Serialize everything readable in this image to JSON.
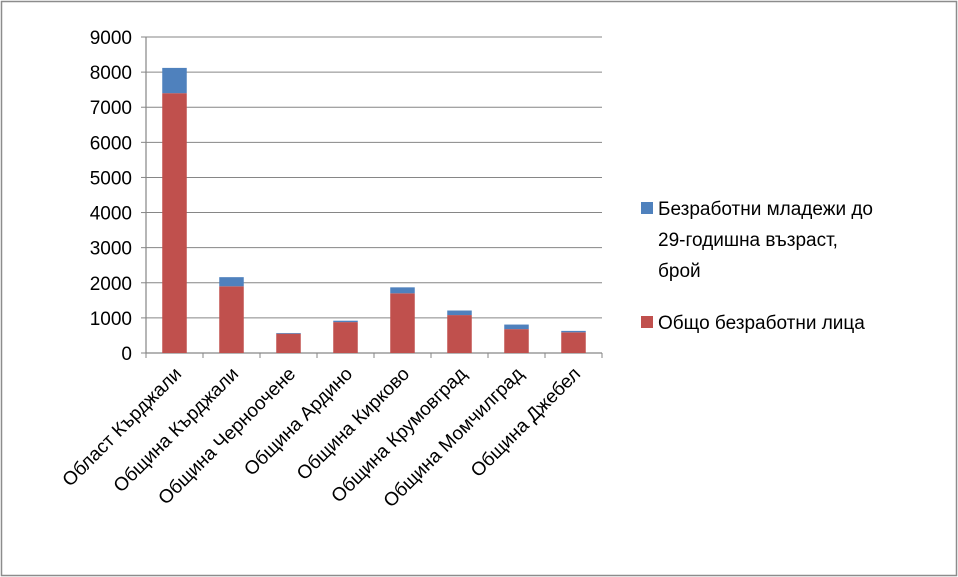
{
  "chart_data": {
    "type": "bar",
    "stacked": true,
    "categories": [
      "Област Кърджали",
      "Община Кърджали",
      "Община Черноочене",
      "Община Ардино",
      "Община Кирково",
      "Община Крумовград",
      "Община Момчилград",
      "Община Джебел"
    ],
    "series": [
      {
        "name": "Общо безработни лица",
        "color": "#c0504d",
        "values": [
          7400,
          1900,
          550,
          880,
          1700,
          1080,
          680,
          590
        ]
      },
      {
        "name": "Безработни младежи до 29-годишна възраст, брой",
        "color": "#4f81bd",
        "values": [
          720,
          260,
          20,
          40,
          170,
          130,
          130,
          40
        ]
      }
    ],
    "ylim": [
      0,
      9000
    ],
    "yticks": [
      0,
      1000,
      2000,
      3000,
      4000,
      5000,
      6000,
      7000,
      8000,
      9000
    ],
    "grid": true,
    "legend_position": "right",
    "legend_lines": [
      [
        "Безработни младежи до",
        "29-годишна възраст,",
        "брой"
      ],
      [
        "Общо безработни лица"
      ]
    ]
  }
}
